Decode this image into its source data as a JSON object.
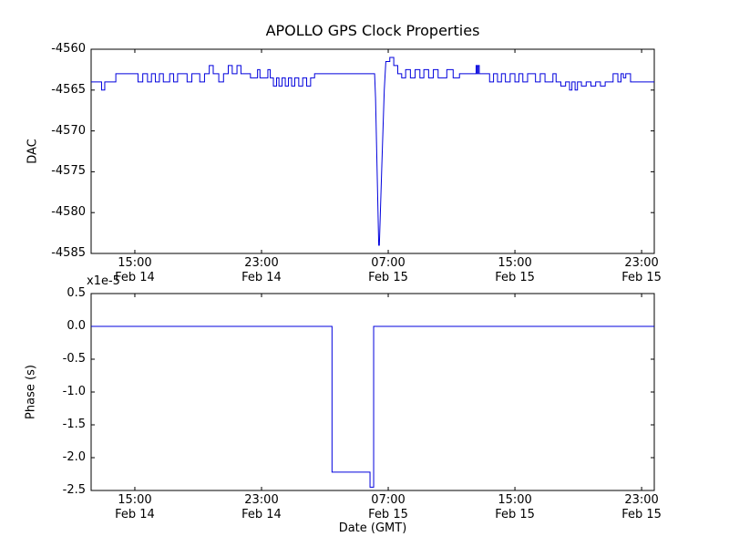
{
  "figure": {
    "title": "APOLLO GPS Clock Properties",
    "xlabel": "Date (GMT)",
    "background": "#ffffff",
    "axis_color": "#000000",
    "line_color": "#0000dd"
  },
  "chart_data": [
    {
      "type": "line",
      "name": "dac-subplot",
      "ylabel": "DAC",
      "ylim": [
        -4585,
        -4560
      ],
      "yticks": [
        {
          "v": -4560,
          "label": "-4560"
        },
        {
          "v": -4565,
          "label": "-4565"
        },
        {
          "v": -4570,
          "label": "-4570"
        },
        {
          "v": -4575,
          "label": "-4575"
        },
        {
          "v": -4580,
          "label": "-4580"
        },
        {
          "v": -4585,
          "label": "-4585"
        }
      ],
      "xlim_hours": [
        12.24,
        47.8
      ],
      "x_unit": "hours since Feb 14 00:00 GMT",
      "xticks": [
        {
          "hour": 15,
          "time": "15:00",
          "date": "Feb 14"
        },
        {
          "hour": 23,
          "time": "23:00",
          "date": "Feb 14"
        },
        {
          "hour": 31,
          "time": "07:00",
          "date": "Feb 15"
        },
        {
          "hour": 39,
          "time": "15:00",
          "date": "Feb 15"
        },
        {
          "hour": 47,
          "time": "23:00",
          "date": "Feb 15"
        }
      ],
      "grid": false,
      "legend": "none",
      "series": [
        {
          "name": "DAC",
          "color": "#0000dd",
          "draw": "steps-with-linear-dip",
          "points": [
            [
              12.24,
              -4564,
              "m"
            ],
            [
              12.9,
              -4565,
              "s"
            ],
            [
              13.1,
              -4564,
              "s"
            ],
            [
              13.8,
              -4563,
              "s"
            ],
            [
              15.2,
              -4564,
              "s"
            ],
            [
              15.5,
              -4563,
              "s"
            ],
            [
              15.8,
              -4564,
              "s"
            ],
            [
              16.05,
              -4563,
              "s"
            ],
            [
              16.3,
              -4564,
              "s"
            ],
            [
              16.55,
              -4563,
              "s"
            ],
            [
              16.8,
              -4564,
              "s"
            ],
            [
              17.2,
              -4563,
              "s"
            ],
            [
              17.45,
              -4564,
              "s"
            ],
            [
              17.7,
              -4563,
              "s"
            ],
            [
              18.3,
              -4564,
              "s"
            ],
            [
              18.6,
              -4563,
              "s"
            ],
            [
              19.1,
              -4564,
              "s"
            ],
            [
              19.4,
              -4563,
              "s"
            ],
            [
              19.7,
              -4562,
              "s"
            ],
            [
              19.95,
              -4563,
              "s"
            ],
            [
              20.3,
              -4564,
              "s"
            ],
            [
              20.6,
              -4563,
              "s"
            ],
            [
              20.9,
              -4562,
              "s"
            ],
            [
              21.15,
              -4563,
              "s"
            ],
            [
              21.45,
              -4562,
              "s"
            ],
            [
              21.7,
              -4563,
              "s"
            ],
            [
              22.3,
              -4563.5,
              "s"
            ],
            [
              22.75,
              -4562.5,
              "s"
            ],
            [
              22.9,
              -4563.5,
              "s"
            ],
            [
              23.4,
              -4562.5,
              "s"
            ],
            [
              23.55,
              -4563.5,
              "s"
            ],
            [
              23.75,
              -4564.5,
              "s"
            ],
            [
              23.95,
              -4563.5,
              "s"
            ],
            [
              24.1,
              -4564.5,
              "s"
            ],
            [
              24.3,
              -4563.5,
              "s"
            ],
            [
              24.5,
              -4564.5,
              "s"
            ],
            [
              24.7,
              -4563.5,
              "s"
            ],
            [
              24.9,
              -4564.5,
              "s"
            ],
            [
              25.1,
              -4563.5,
              "s"
            ],
            [
              25.35,
              -4564.5,
              "s"
            ],
            [
              25.6,
              -4563.5,
              "s"
            ],
            [
              25.85,
              -4564.5,
              "s"
            ],
            [
              26.1,
              -4563.5,
              "s"
            ],
            [
              26.35,
              -4563,
              "s"
            ],
            [
              30.14,
              -4563,
              "s"
            ],
            [
              30.2,
              -4566,
              "l"
            ],
            [
              30.4,
              -4584,
              "l"
            ],
            [
              30.44,
              -4584,
              "l"
            ],
            [
              30.6,
              -4574,
              "l"
            ],
            [
              30.75,
              -4565,
              "l"
            ],
            [
              30.85,
              -4561.5,
              "l"
            ],
            [
              31.1,
              -4561,
              "s"
            ],
            [
              31.35,
              -4562,
              "s"
            ],
            [
              31.6,
              -4563,
              "s"
            ],
            [
              31.85,
              -4563.5,
              "s"
            ],
            [
              32.1,
              -4562.5,
              "s"
            ],
            [
              32.4,
              -4563.5,
              "s"
            ],
            [
              32.7,
              -4562.5,
              "s"
            ],
            [
              33.0,
              -4563.5,
              "s"
            ],
            [
              33.25,
              -4562.5,
              "s"
            ],
            [
              33.55,
              -4563.5,
              "s"
            ],
            [
              33.85,
              -4562.5,
              "s"
            ],
            [
              34.15,
              -4563.5,
              "s"
            ],
            [
              34.7,
              -4562.5,
              "s"
            ],
            [
              35.1,
              -4563.5,
              "s"
            ],
            [
              35.5,
              -4563,
              "s"
            ],
            [
              36.55,
              -4562,
              "s"
            ],
            [
              36.62,
              -4563,
              "s"
            ],
            [
              36.68,
              -4562,
              "s"
            ],
            [
              36.75,
              -4563,
              "s"
            ],
            [
              37.4,
              -4564,
              "s"
            ],
            [
              37.65,
              -4563,
              "s"
            ],
            [
              37.9,
              -4564,
              "s"
            ],
            [
              38.15,
              -4563,
              "s"
            ],
            [
              38.4,
              -4564,
              "s"
            ],
            [
              38.7,
              -4563,
              "s"
            ],
            [
              39.0,
              -4564,
              "s"
            ],
            [
              39.25,
              -4563,
              "s"
            ],
            [
              39.5,
              -4564,
              "s"
            ],
            [
              39.8,
              -4563,
              "s"
            ],
            [
              40.3,
              -4564,
              "s"
            ],
            [
              40.6,
              -4563,
              "s"
            ],
            [
              40.9,
              -4564,
              "s"
            ],
            [
              41.4,
              -4563,
              "s"
            ],
            [
              41.6,
              -4564,
              "s"
            ],
            [
              41.9,
              -4564.5,
              "s"
            ],
            [
              42.2,
              -4564,
              "s"
            ],
            [
              42.45,
              -4565,
              "s"
            ],
            [
              42.6,
              -4564,
              "s"
            ],
            [
              42.8,
              -4565,
              "s"
            ],
            [
              42.95,
              -4564,
              "s"
            ],
            [
              43.2,
              -4564.5,
              "s"
            ],
            [
              43.5,
              -4564,
              "s"
            ],
            [
              43.8,
              -4564.5,
              "s"
            ],
            [
              44.1,
              -4564,
              "s"
            ],
            [
              44.4,
              -4564.5,
              "s"
            ],
            [
              44.7,
              -4564,
              "s"
            ],
            [
              45.2,
              -4563,
              "s"
            ],
            [
              45.5,
              -4564,
              "s"
            ],
            [
              45.7,
              -4563,
              "s"
            ],
            [
              45.85,
              -4563.5,
              "s"
            ],
            [
              46.0,
              -4563,
              "s"
            ],
            [
              46.3,
              -4564,
              "s"
            ],
            [
              47.8,
              -4564,
              "s"
            ]
          ]
        }
      ]
    },
    {
      "type": "line",
      "name": "phase-subplot",
      "ylabel": "Phase (s)",
      "y_offset_text": "x1e-5",
      "y_scale": 1e-05,
      "ylim": [
        -2.5,
        0.5
      ],
      "yticks": [
        {
          "v": 0.5,
          "label": "0.5"
        },
        {
          "v": 0.0,
          "label": "0.0"
        },
        {
          "v": -0.5,
          "label": "-0.5"
        },
        {
          "v": -1.0,
          "label": "-1.0"
        },
        {
          "v": -1.5,
          "label": "-1.5"
        },
        {
          "v": -2.0,
          "label": "-2.0"
        },
        {
          "v": -2.5,
          "label": "-2.5"
        }
      ],
      "xlim_hours": [
        12.24,
        47.8
      ],
      "x_unit": "hours since Feb 14 00:00 GMT",
      "xticks": [
        {
          "hour": 15,
          "time": "15:00",
          "date": "Feb 14"
        },
        {
          "hour": 23,
          "time": "23:00",
          "date": "Feb 14"
        },
        {
          "hour": 31,
          "time": "07:00",
          "date": "Feb 15"
        },
        {
          "hour": 39,
          "time": "15:00",
          "date": "Feb 15"
        },
        {
          "hour": 47,
          "time": "23:00",
          "date": "Feb 15"
        }
      ],
      "grid": false,
      "legend": "none",
      "series": [
        {
          "name": "Phase",
          "color": "#0000dd",
          "draw": "steps",
          "points": [
            [
              12.24,
              0.0,
              "m"
            ],
            [
              27.45,
              -2.22,
              "s"
            ],
            [
              29.85,
              -2.45,
              "s"
            ],
            [
              30.08,
              0.0,
              "s"
            ],
            [
              47.8,
              0.0,
              "s"
            ]
          ]
        }
      ]
    }
  ]
}
